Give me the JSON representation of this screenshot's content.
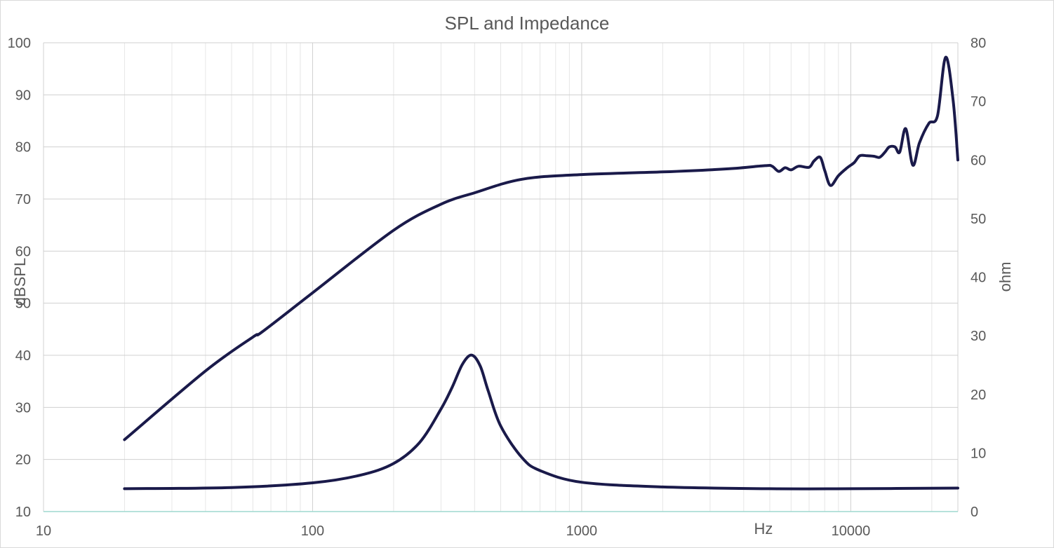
{
  "chart_data": {
    "type": "line",
    "title": "SPL and Impedance",
    "xlabel": "Hz",
    "ylabel": "dBSPL",
    "y2label": "ohm",
    "x_scale": "log",
    "xlim": [
      10,
      25000
    ],
    "ylim": [
      10,
      100
    ],
    "y2lim": [
      0,
      80
    ],
    "x_ticks": [
      "10",
      "100",
      "1000",
      "10000"
    ],
    "y_ticks": [
      "10",
      "20",
      "30",
      "40",
      "50",
      "60",
      "70",
      "80",
      "90",
      "100"
    ],
    "y2_ticks": [
      "0",
      "10",
      "20",
      "30",
      "40",
      "50",
      "60",
      "70",
      "80"
    ],
    "grid": true,
    "line_color": "#1a1a4a",
    "series": [
      {
        "axis": "left",
        "x": [
          20,
          40,
          60,
          65,
          100,
          200,
          300,
          400,
          600,
          1000,
          2000,
          3500,
          4800,
          5100,
          5400,
          5700,
          6000,
          6400,
          7000,
          7300,
          7700,
          8000,
          8400,
          9000,
          9700,
          10300,
          10800,
          11500,
          12200,
          12800,
          13400,
          13900,
          14600,
          15200,
          16000,
          17000,
          18000,
          19500,
          21000,
          22500,
          24000,
          25000
        ],
        "values": [
          23.8,
          37,
          43.5,
          44.5,
          52,
          64,
          69,
          71.2,
          73.8,
          74.7,
          75.2,
          75.8,
          76.4,
          76.3,
          75.3,
          76,
          75.6,
          76.3,
          76.1,
          77.3,
          78,
          75.5,
          72.6,
          74.5,
          76,
          77,
          78.3,
          78.3,
          78.2,
          78,
          79,
          80,
          80,
          79,
          83.5,
          76.5,
          80.8,
          84.5,
          86,
          97.2,
          89,
          77.5
        ]
      },
      {
        "axis": "right",
        "x": [
          20,
          50,
          100,
          150,
          200,
          250,
          300,
          330,
          360,
          390,
          420,
          450,
          500,
          600,
          700,
          1000,
          2000,
          5000,
          10000,
          25000
        ],
        "values": [
          3.9,
          4.1,
          4.9,
          6.2,
          8.2,
          11.8,
          17.5,
          21.2,
          25.1,
          26.7,
          24.8,
          20.5,
          14.6,
          9.2,
          7,
          5,
          4.2,
          3.9,
          3.9,
          4
        ]
      }
    ]
  }
}
